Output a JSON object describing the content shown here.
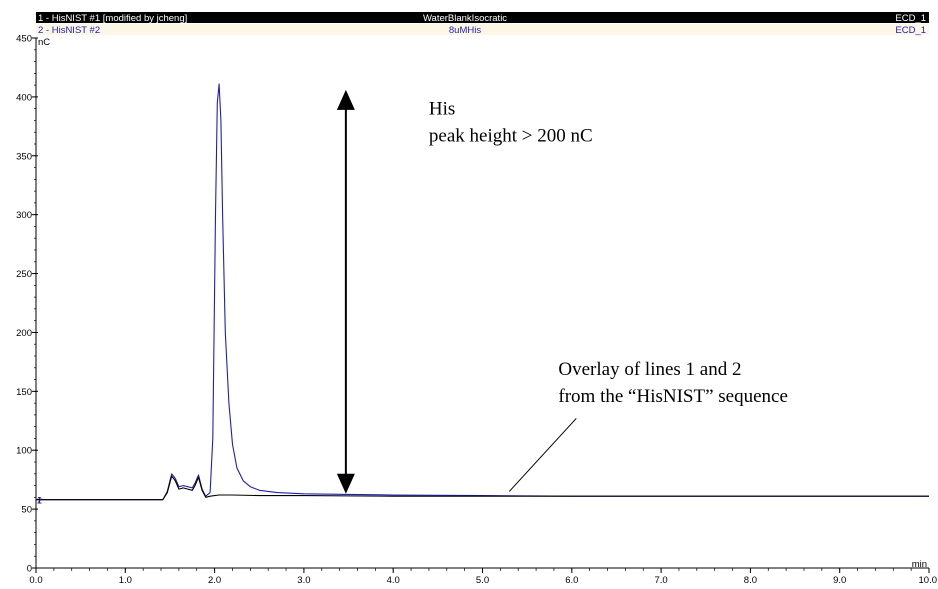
{
  "header": {
    "trace1": {
      "name": "1 - HisNIST #1 [modified by jcheng]",
      "sample": "WaterBlankIsocratic",
      "channel": "ECD_1",
      "color": "#000000"
    },
    "trace2": {
      "name": "2 - HisNIST #2",
      "sample": "8uMHis",
      "channel": "ECD_1",
      "color": "#1f1fb4"
    }
  },
  "chart_data": {
    "type": "line",
    "xlabel": "min",
    "ylabel": "nC",
    "xlim": [
      0,
      10
    ],
    "ylim": [
      0,
      450
    ],
    "x_ticks": [
      "0.0",
      "1.0",
      "2.0",
      "3.0",
      "4.0",
      "5.0",
      "6.0",
      "7.0",
      "8.0",
      "9.0",
      "10.0"
    ],
    "y_ticks": [
      "0",
      "50",
      "100",
      "150",
      "200",
      "250",
      "300",
      "350",
      "400",
      "450"
    ],
    "series_markers": [
      "1",
      "2"
    ],
    "series": [
      {
        "name": "1 - HisNIST #1 [modified by jcheng]",
        "color": "#000000",
        "x": [
          0,
          1.42,
          1.47,
          1.52,
          1.56,
          1.6,
          1.65,
          1.7,
          1.75,
          1.78,
          1.82,
          1.86,
          1.9,
          1.95,
          2.05,
          2.2,
          2.5,
          3.0,
          4.0,
          5.0,
          6.0,
          7.0,
          8.0,
          9.0,
          10.0
        ],
        "y": [
          58,
          58,
          64,
          78,
          74,
          67,
          68,
          67,
          66,
          70,
          77,
          66,
          60,
          61,
          62,
          62,
          61.5,
          61.5,
          61,
          61,
          61,
          61,
          61,
          61,
          61
        ]
      },
      {
        "name": "2 - HisNIST #2",
        "color": "#1f1fb4",
        "x": [
          0,
          1.42,
          1.47,
          1.52,
          1.56,
          1.6,
          1.65,
          1.7,
          1.75,
          1.78,
          1.82,
          1.86,
          1.9,
          1.95,
          1.98,
          2.01,
          2.03,
          2.05,
          2.07,
          2.09,
          2.12,
          2.16,
          2.2,
          2.25,
          2.32,
          2.4,
          2.5,
          2.7,
          3.0,
          3.5,
          4.0,
          5.0,
          6.0,
          7.0,
          8.0,
          9.0,
          10.0
        ],
        "y": [
          58,
          58,
          65,
          80,
          76,
          69,
          70,
          69,
          68,
          72,
          79,
          67,
          61,
          64,
          110,
          300,
          395,
          411,
          380,
          300,
          200,
          140,
          105,
          85,
          74,
          69,
          66,
          64,
          63,
          62.5,
          62,
          61.5,
          61,
          61,
          61,
          61,
          61
        ]
      }
    ],
    "annotations": [
      {
        "text": "His",
        "x": 4.4,
        "y": 385
      },
      {
        "text": "peak height > 200 nC",
        "x": 4.4,
        "y": 362
      },
      {
        "text": "Overlay of lines 1 and 2",
        "x": 5.85,
        "y": 164
      },
      {
        "text": "from the “HisNIST” sequence",
        "x": 5.85,
        "y": 141
      }
    ],
    "arrow": {
      "x": 3.47,
      "y_start": 63,
      "y_end": 406
    },
    "leader_line": {
      "x1": 5.3,
      "y1": 65,
      "x2": 6.05,
      "y2": 127
    }
  }
}
